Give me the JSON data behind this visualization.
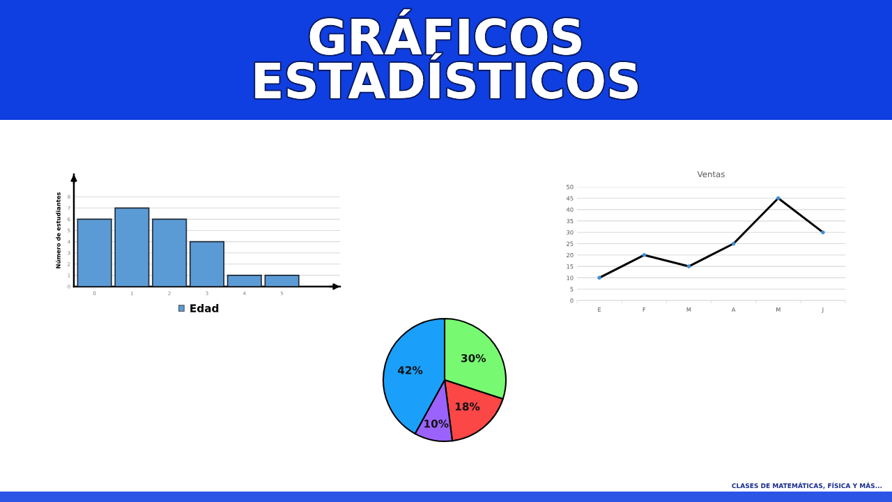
{
  "chart_data": [
    {
      "type": "other",
      "title": "GRÁFICOS\nESTADÍSTICOS",
      "annotations": [
        "CLASES DE MATEMÁTICAS, FÍSICA Y MÁS..."
      ]
    },
    {
      "type": "bar",
      "categories": [
        "0",
        "1",
        "2",
        "3",
        "4",
        "5"
      ],
      "series": [
        {
          "name": "Edad",
          "color": "#5b9bd5",
          "values": [
            6,
            7,
            6,
            4,
            1,
            1
          ]
        }
      ],
      "ylabel": "Número de estudiantes",
      "ylim": [
        0,
        10
      ],
      "yticks": [
        0,
        1,
        2,
        3,
        4,
        5,
        6,
        7,
        8
      ],
      "grid": "y",
      "legend": "bottom"
    },
    {
      "type": "line",
      "title": "Ventas",
      "categories": [
        "E",
        "F",
        "M",
        "A",
        "M",
        "J"
      ],
      "series": [
        {
          "color": "#000000",
          "colors": [
            "#3d8fd6",
            "#3d8fd6",
            "#3d8fd6",
            "#3d8fd6",
            "#3d8fd6",
            "#3d8fd6"
          ],
          "values": [
            10,
            20,
            15,
            25,
            45,
            30
          ]
        }
      ],
      "ylim": [
        0,
        50
      ],
      "yticks": [
        0,
        5,
        10,
        15,
        20,
        25,
        30,
        35,
        40,
        45,
        50
      ],
      "grid": "y",
      "marker": "circle",
      "line_style": "solid"
    },
    {
      "type": "pie",
      "categories": [
        null,
        null,
        null,
        null
      ],
      "values": [
        30,
        18,
        10,
        42
      ],
      "colors": [
        "#77fa72",
        "#fc4747",
        "#9b63fc",
        "#1aa0fa"
      ],
      "value_labels": [
        "30%",
        "18%",
        "10%",
        "42%"
      ]
    }
  ]
}
